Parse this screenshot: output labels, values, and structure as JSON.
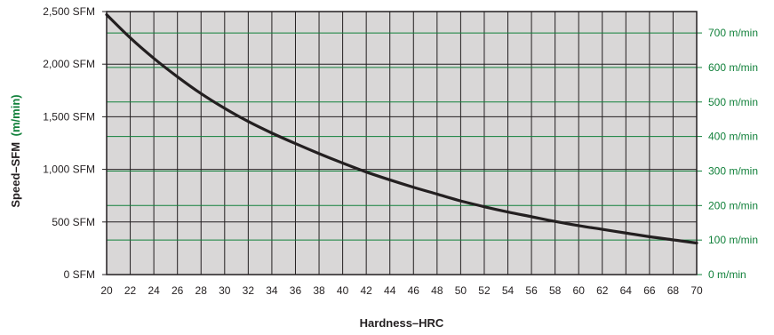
{
  "chart_data": {
    "type": "line",
    "xlabel": "Hardness–HRC",
    "ylabel": "Speed–SFM",
    "ylabel_alt_unit": "(m/min)",
    "x_ticks": [
      20,
      22,
      24,
      26,
      28,
      30,
      32,
      34,
      36,
      38,
      40,
      42,
      44,
      46,
      48,
      50,
      52,
      54,
      56,
      58,
      60,
      62,
      64,
      66,
      68,
      70
    ],
    "y_left_ticks": [
      "0 SFM",
      "500 SFM",
      "1,000 SFM",
      "1,500 SFM",
      "2,000 SFM",
      "2,500 SFM"
    ],
    "y_right_ticks": [
      "0 m/min",
      "100 m/min",
      "200 m/min",
      "300 m/min",
      "400 m/min",
      "500 m/min",
      "600 m/min",
      "700 m/min"
    ],
    "xlim": [
      20,
      70
    ],
    "ylim": [
      0,
      2500
    ],
    "y_right_lim_m_per_min": [
      0,
      762
    ],
    "grid": true,
    "colors": {
      "curve": "#231f20",
      "metric": "#12813b",
      "plot_bg": "#d9d7d7",
      "grid": "#231f20"
    },
    "series": [
      {
        "x": [
          20,
          22,
          24,
          26,
          28,
          30,
          32,
          34,
          36,
          38,
          40,
          42,
          44,
          46,
          48,
          50,
          52,
          54,
          56,
          58,
          60,
          62,
          64,
          66,
          68,
          70
        ],
        "values": [
          2470,
          2250,
          2055,
          1880,
          1720,
          1580,
          1455,
          1345,
          1245,
          1150,
          1060,
          975,
          900,
          830,
          765,
          700,
          645,
          595,
          550,
          505,
          465,
          430,
          395,
          360,
          330,
          300
        ]
      }
    ]
  }
}
